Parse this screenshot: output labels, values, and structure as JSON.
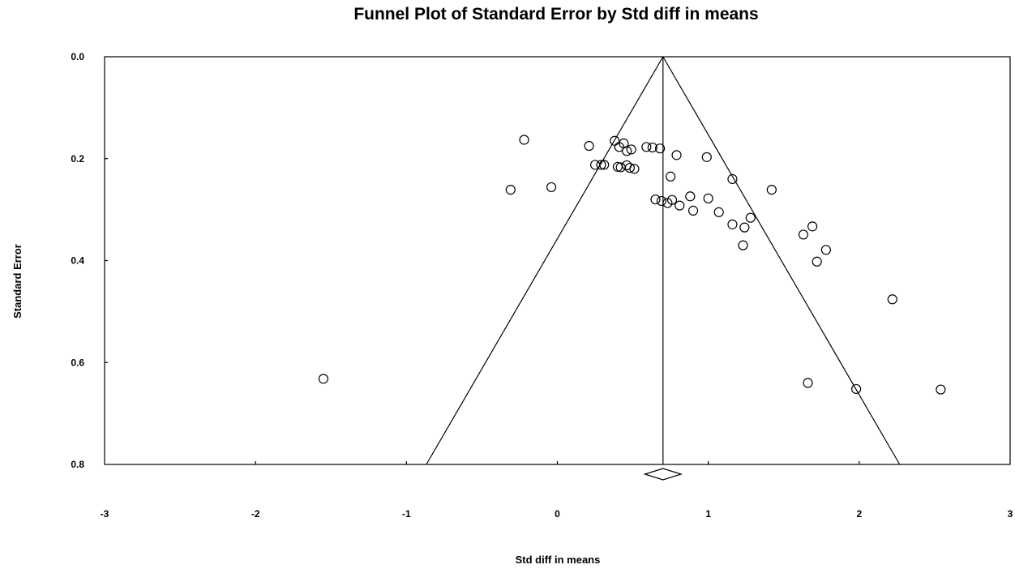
{
  "chart_data": {
    "type": "scatter",
    "title": "Funnel Plot of Standard Error by Std diff in means",
    "xlabel": "Std diff in means",
    "ylabel": "Standard Error",
    "xlim": [
      -3,
      3
    ],
    "ylim": [
      0,
      0.8
    ],
    "y_reversed": true,
    "x_ticks": [
      "-3",
      "-2",
      "-1",
      "0",
      "1",
      "2",
      "3"
    ],
    "y_ticks": [
      "0.0",
      "0.2",
      "0.4",
      "0.6",
      "0.8"
    ],
    "grid": false,
    "summary_effect": 0.7,
    "summary_ci": [
      0.58,
      0.82
    ],
    "funnel_z": 1.96,
    "points": [
      {
        "x": -0.22,
        "y": 0.163
      },
      {
        "x": 0.21,
        "y": 0.175
      },
      {
        "x": 0.38,
        "y": 0.165
      },
      {
        "x": 0.41,
        "y": 0.177
      },
      {
        "x": 0.44,
        "y": 0.17
      },
      {
        "x": 0.46,
        "y": 0.185
      },
      {
        "x": 0.49,
        "y": 0.182
      },
      {
        "x": 0.59,
        "y": 0.177
      },
      {
        "x": 0.63,
        "y": 0.178
      },
      {
        "x": 0.68,
        "y": 0.18
      },
      {
        "x": 0.79,
        "y": 0.193
      },
      {
        "x": 0.99,
        "y": 0.197
      },
      {
        "x": 0.25,
        "y": 0.212
      },
      {
        "x": 0.29,
        "y": 0.212
      },
      {
        "x": 0.31,
        "y": 0.212
      },
      {
        "x": 0.4,
        "y": 0.216
      },
      {
        "x": 0.42,
        "y": 0.217
      },
      {
        "x": 0.46,
        "y": 0.213
      },
      {
        "x": 0.48,
        "y": 0.218
      },
      {
        "x": 0.51,
        "y": 0.22
      },
      {
        "x": 0.75,
        "y": 0.235
      },
      {
        "x": 1.16,
        "y": 0.24
      },
      {
        "x": -0.31,
        "y": 0.261
      },
      {
        "x": -0.04,
        "y": 0.256
      },
      {
        "x": 1.42,
        "y": 0.261
      },
      {
        "x": 0.65,
        "y": 0.28
      },
      {
        "x": 0.69,
        "y": 0.283
      },
      {
        "x": 0.73,
        "y": 0.287
      },
      {
        "x": 0.76,
        "y": 0.281
      },
      {
        "x": 0.81,
        "y": 0.292
      },
      {
        "x": 0.88,
        "y": 0.274
      },
      {
        "x": 1.0,
        "y": 0.278
      },
      {
        "x": 0.9,
        "y": 0.302
      },
      {
        "x": 1.07,
        "y": 0.305
      },
      {
        "x": 1.28,
        "y": 0.316
      },
      {
        "x": 1.16,
        "y": 0.329
      },
      {
        "x": 1.24,
        "y": 0.335
      },
      {
        "x": 1.23,
        "y": 0.37
      },
      {
        "x": 1.63,
        "y": 0.349
      },
      {
        "x": 1.69,
        "y": 0.333
      },
      {
        "x": 1.72,
        "y": 0.402
      },
      {
        "x": 1.78,
        "y": 0.379
      },
      {
        "x": 2.22,
        "y": 0.476
      },
      {
        "x": -1.55,
        "y": 0.632
      },
      {
        "x": 1.66,
        "y": 0.64
      },
      {
        "x": 1.98,
        "y": 0.652
      },
      {
        "x": 2.54,
        "y": 0.653
      }
    ]
  }
}
